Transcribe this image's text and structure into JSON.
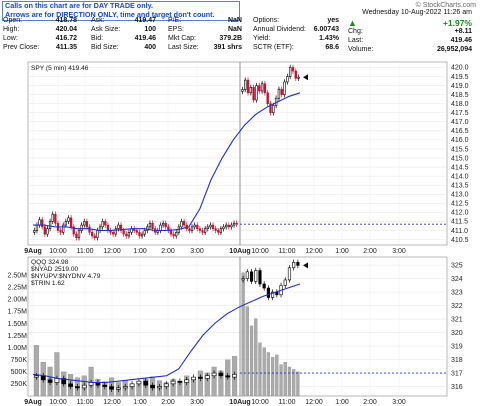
{
  "notes": {
    "line1": "Calls on this chart are for DAY TRADE only.",
    "line2": "Arrows are for DIRECTION ONLY, time and target don't count."
  },
  "watermark": "© StockCharts.com",
  "header_date": "Wednesday  10-Aug-2022  11:26 am",
  "quote_cols": [
    [
      {
        "label": "Open:",
        "value": "418.78"
      },
      {
        "label": "High:",
        "value": "420.04"
      },
      {
        "label": "Low:",
        "value": "416.72"
      },
      {
        "label": "Prev Close:",
        "value": "411.35"
      }
    ],
    [
      {
        "label": "Ask:",
        "value": "419.47"
      },
      {
        "label": "Ask Size:",
        "value": "100"
      },
      {
        "label": "Bid:",
        "value": "419.46"
      },
      {
        "label": "Bid Size:",
        "value": "400"
      }
    ],
    [
      {
        "label": "P/E:",
        "value": "NaN"
      },
      {
        "label": "EPS:",
        "value": "NaN"
      },
      {
        "label": "Mkt Cap:",
        "value": "379.2B"
      },
      {
        "label": "Last Size:",
        "value": "391 shrs"
      }
    ],
    [
      {
        "label": "Options:",
        "value": "yes"
      },
      {
        "label": "Annual Dividend:",
        "value": "6.00743"
      },
      {
        "label": "Yield:",
        "value": "1.43%"
      },
      {
        "label": "SCTR (ETF):",
        "value": "68.6"
      }
    ]
  ],
  "change": {
    "pct": "+1.97%",
    "chg_label": "Chg:",
    "chg": "+8.11",
    "last_label": "Last:",
    "last": "419.46",
    "vol_label": "Volume:",
    "vol": "26,952,094",
    "color": "#1a8a1a"
  },
  "colors": {
    "up": "#000000",
    "down": "#cc1133",
    "ma": "#1f2bd6",
    "vol": "#aaaaaa",
    "dash": "#2233cc"
  },
  "chart_data": [
    {
      "type": "candlestick",
      "label": "SPY (5 min) 419.46",
      "ylim": [
        410.2,
        420.3
      ],
      "y_ticks": [
        410.5,
        411.0,
        411.5,
        412.0,
        412.5,
        413.0,
        413.5,
        414.0,
        414.5,
        415.0,
        415.5,
        416.0,
        416.5,
        417.0,
        417.5,
        418.0,
        418.5,
        419.0,
        419.5,
        420.0
      ],
      "y_tick_labels": [
        "410.5",
        "411.0",
        "411.5",
        "412.0",
        "412.5",
        "413.0",
        "413.5",
        "414.0",
        "414.5",
        "415.0",
        "415.5",
        "416.0",
        "416.5",
        "417.0",
        "417.5",
        "418.0",
        "418.5",
        "419.0",
        "419.5",
        "420.0"
      ],
      "x_tick_labels": [
        "9Aug",
        "10:00",
        "11:00",
        "12:00",
        "1:00",
        "2:00",
        "3:00",
        "10Aug",
        "10:00",
        "11:00",
        "12:00",
        "1:00",
        "2:00",
        "3:00"
      ],
      "prev_close": 411.35,
      "day1_close": [
        411.0,
        411.3,
        411.6,
        411.2,
        410.8,
        411.1,
        411.5,
        411.9,
        411.4,
        411.0,
        410.9,
        411.3,
        411.5,
        411.7,
        411.2,
        410.8,
        410.6,
        411.0,
        411.3,
        411.5,
        411.2,
        410.9,
        410.7,
        410.6,
        411.0,
        411.2,
        411.5,
        411.3,
        411.0,
        410.9,
        410.8,
        411.1,
        411.3,
        411.0,
        410.8,
        410.7,
        410.9,
        411.1,
        411.0,
        410.9,
        410.7,
        410.8,
        411.0,
        411.2,
        411.4,
        411.1,
        410.9,
        411.0,
        411.3,
        411.4,
        411.2,
        411.0,
        410.8,
        410.7,
        410.9,
        411.2,
        411.5,
        411.3,
        411.1,
        411.0,
        411.2,
        411.3,
        411.1,
        411.0,
        410.9,
        411.1,
        411.2,
        411.3,
        411.1,
        411.0,
        410.9,
        411.1,
        411.2,
        411.3,
        411.2,
        411.3,
        411.4,
        411.35
      ],
      "day2_close": [
        418.78,
        419.3,
        418.6,
        418.9,
        418.2,
        419.0,
        418.7,
        419.1,
        418.6,
        418.0,
        417.5,
        417.9,
        418.3,
        418.8,
        418.5,
        419.2,
        419.5,
        420.0,
        419.8,
        419.4,
        419.46
      ],
      "ma_values": [
        411.3,
        411.3,
        411.2,
        411.2,
        411.1,
        411.1,
        411.0,
        411.0,
        411.05,
        411.1,
        411.1,
        411.0,
        411.0,
        411.05,
        411.2,
        412.2,
        413.8,
        415.0,
        416.0,
        416.8,
        417.4,
        417.8,
        418.1,
        418.4,
        418.6
      ]
    },
    {
      "type": "line+volume",
      "legend": [
        "QQQ 324.98",
        "$NYAD 2519.00",
        "$NYUPV:$NYDNV 4.79",
        "$TRIN 1.62"
      ],
      "ylim": [
        315.3,
        325.6
      ],
      "y_ticks": [
        316,
        317,
        318,
        319,
        320,
        321,
        322,
        323,
        324,
        325
      ],
      "y_tick_labels": [
        "316",
        "317",
        "318",
        "319",
        "320",
        "321",
        "322",
        "323",
        "324",
        "325"
      ],
      "vol_ticks": [
        250000,
        500000,
        750000,
        1000000,
        1250000,
        1500000,
        1750000,
        2000000,
        2250000,
        2500000
      ],
      "vol_tick_labels": [
        "250K",
        "500K",
        "750K",
        "1.00M",
        "1.25M",
        "1.50M",
        "1.75M",
        "2.00M",
        "2.25M",
        "2.50M"
      ],
      "x_tick_labels": [
        "9Aug",
        "10:00",
        "11:00",
        "12:00",
        "1:00",
        "2:00",
        "3:00",
        "10Aug",
        "10:00",
        "11:00",
        "12:00",
        "1:00",
        "2:00",
        "3:00"
      ],
      "qqq_day1": [
        316.8,
        316.5,
        316.3,
        316.6,
        316.2,
        316.0,
        315.9,
        316.1,
        316.3,
        316.1,
        316.0,
        315.8,
        315.9,
        316.0,
        316.2,
        316.4,
        316.1,
        315.9,
        316.0,
        316.2,
        316.4,
        316.3,
        316.5,
        316.7,
        316.6,
        316.8,
        317.0,
        316.8,
        316.7,
        316.9
      ],
      "qqq_day2": [
        324.0,
        324.5,
        323.8,
        324.6,
        323.6,
        323.3,
        322.6,
        323.0,
        322.8,
        323.5,
        323.9,
        324.8,
        325.2,
        324.98
      ],
      "vol_day1": [
        1050000,
        700000,
        600000,
        900000,
        500000,
        450000,
        380000,
        420000,
        600000,
        350000,
        300000,
        380000,
        280000,
        320000,
        250000,
        300000,
        350000,
        400000,
        320000,
        280000,
        350000,
        300000,
        420000,
        380000,
        520000,
        480000,
        600000,
        520000,
        750000,
        820000
      ],
      "vol_day2": [
        2550000,
        1850000,
        1450000,
        1600000,
        1100000,
        1000000,
        900000,
        800000,
        850000,
        650000,
        700000,
        600000,
        550000,
        500000
      ]
    }
  ]
}
